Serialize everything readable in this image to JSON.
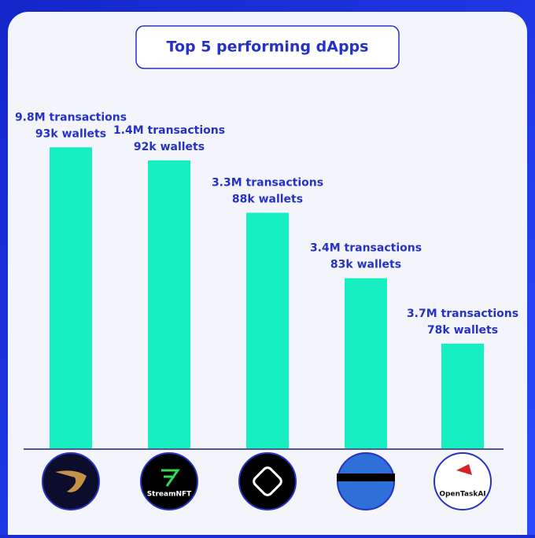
{
  "chart_data": {
    "type": "bar",
    "title": "Top 5 performing dApps",
    "categories": [
      null,
      "StreamNFT",
      null,
      null,
      "OpenTaskAI"
    ],
    "values": [
      93000,
      92000,
      88000,
      83000,
      78000
    ],
    "value_labels": [
      "93k wallets",
      "92k wallets",
      "88k wallets",
      "83k wallets",
      "78k wallets"
    ],
    "transactions": [
      9800000,
      1400000,
      3300000,
      3400000,
      3700000
    ],
    "transaction_labels": [
      "9.8M transactions",
      "1.4M transactions",
      "3.3M  transactions",
      "3.4M  transactions",
      "3.7M  transactions"
    ],
    "color": "#17efc2",
    "ylim": [
      70000,
      95000
    ]
  }
}
